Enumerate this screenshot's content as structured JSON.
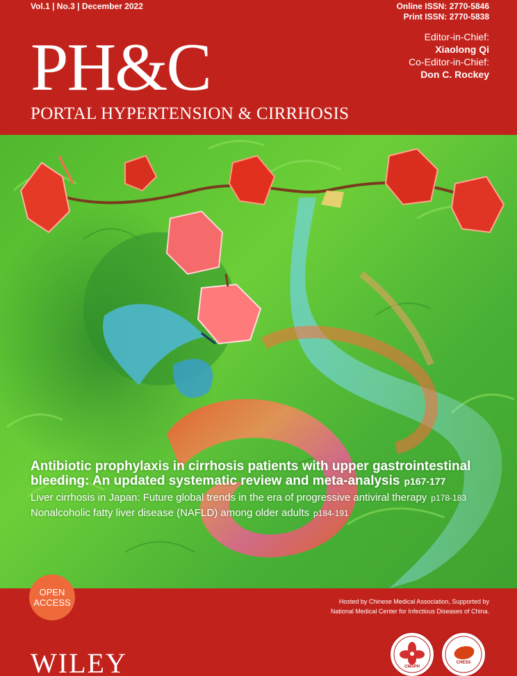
{
  "cover": {
    "issue_line": "Vol.1 | No.3 | December 2022",
    "online_issn": "Online ISSN: 2770-5846",
    "print_issn": "Print ISSN: 2770-5838",
    "logo": "PH&C",
    "journal_name": "PORTAL HYPERTENSION & CIRRHOSIS",
    "editor_label": "Editor-in-Chief:",
    "editor_name": "Xiaolong Qi",
    "coeditor_label": "Co-Editor-in-Chief:",
    "coeditor_name": "Don C. Rockey"
  },
  "articles": [
    {
      "title": "Antibiotic prophylaxis in cirrhosis patients with upper gastrointestinal bleeding: An updated systematic review and meta-analysis",
      "pages": "p167-177"
    },
    {
      "title": "Liver cirrhosis in Japan: Future global trends in the era of progressive antiviral therapy",
      "pages": "p178-183"
    },
    {
      "title": "Nonalcoholic fatty liver disease (NAFLD) among older adults",
      "pages": "p184-191"
    }
  ],
  "badge": {
    "line1": "OPEN",
    "line2": "ACCESS"
  },
  "footer": {
    "hosted_line1": "Hosted by Chinese Medical Association, Supported by",
    "hosted_line2": "National Medical Center for Infectious Diseases of China.",
    "publisher": "WILEY",
    "seal1_label": "CMAPH",
    "seal2_label": "CHESS"
  },
  "colors": {
    "brand_red": "#c2221c",
    "badge_orange": "#ee6a3a",
    "art_green": "#5cc136"
  }
}
